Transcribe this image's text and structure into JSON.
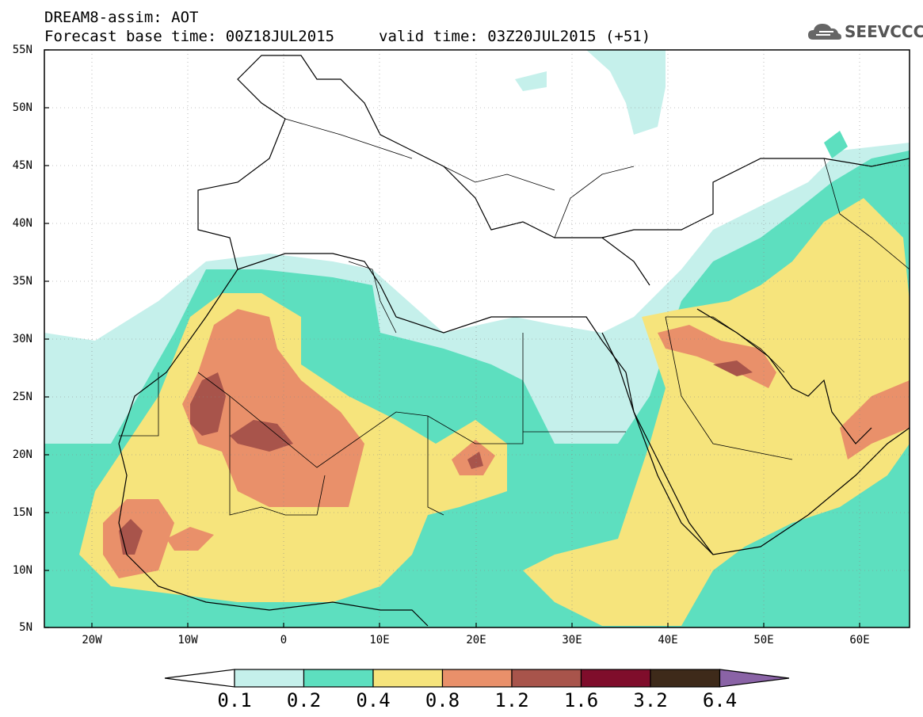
{
  "header": {
    "title": "DREAM8-assim: AOT",
    "base_time": "Forecast base time: 00Z18JUL2015",
    "valid_time": "valid time: 03Z20JUL2015 (+51)"
  },
  "logo": {
    "text": "SEEVCCC",
    "icon": "cloud-icon"
  },
  "axes": {
    "lat_labels": [
      "55N",
      "50N",
      "45N",
      "40N",
      "35N",
      "30N",
      "25N",
      "20N",
      "15N",
      "10N",
      "5N"
    ],
    "lon_labels": [
      "20W",
      "10W",
      "0",
      "10E",
      "20E",
      "30E",
      "40E",
      "50E",
      "60E"
    ]
  },
  "colorbar": {
    "labels": [
      "0.1",
      "0.2",
      "0.4",
      "0.8",
      "1.2",
      "1.6",
      "3.2",
      "6.4"
    ],
    "colors": [
      "#ffffff",
      "#c5f0eb",
      "#5ddfbf",
      "#f6e47c",
      "#e9906a",
      "#a8544b",
      "#7f0d2b",
      "#3e2a1a",
      "#8a63a6"
    ]
  },
  "map": {
    "variable": "AOT",
    "fill_colors": {
      "very_light": "#c5f0eb",
      "green": "#5ddfbf",
      "yellow": "#f6e47c",
      "orange": "#e9906a",
      "brown": "#a8544b"
    }
  }
}
